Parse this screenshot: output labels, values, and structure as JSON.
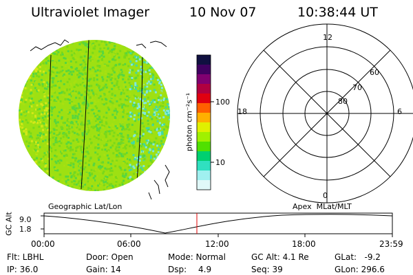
{
  "header": {
    "instrument": "Ultraviolet Imager",
    "date": "10 Nov 07",
    "time": "10:38:44 UT"
  },
  "colorbar": {
    "unit_label": "photon cm⁻²s⁻¹",
    "ticks": [
      "100",
      "10"
    ],
    "colors": [
      "#101040",
      "#400060",
      "#800070",
      "#b00040",
      "#e00010",
      "#ff6000",
      "#ffb000",
      "#e0f000",
      "#a0f000",
      "#50e000",
      "#00d070",
      "#30e0c0",
      "#a0f0f0",
      "#e0f8f8"
    ]
  },
  "image": {
    "palette": [
      "#7ad81a",
      "#a8e010",
      "#56d640",
      "#40d8a0",
      "#7fe8e0",
      "#d4e818"
    ]
  },
  "polar_grid": {
    "mlt_labels": [
      "12",
      "18",
      "6",
      "0"
    ],
    "mlat_labels": [
      "60",
      "70",
      "80"
    ]
  },
  "timeline": {
    "left_title": "Geographic Lat/Lon",
    "right_title": "Apex  MLat/MLT",
    "y_axis_label": "GC Alt",
    "y_ticks": [
      "9.0",
      "1.8"
    ],
    "x_ticks": [
      "00:00",
      "06:00",
      "12:00",
      "18:00",
      "23:59"
    ],
    "cursor_color": "#e00000"
  },
  "info": {
    "filter": "Flt: LBHL",
    "ip": "IP: 36.0",
    "door": "Door: Open",
    "gain": "Gain: 14",
    "mode": "Mode: Normal",
    "dsp": "Dsp:",
    "dsp_value": "4.9",
    "gc_alt": "GC Alt: 4.1 Re",
    "seq": "Seq: 39",
    "glat": "GLat:   -9.2",
    "glon": "GLon: 296.6"
  }
}
